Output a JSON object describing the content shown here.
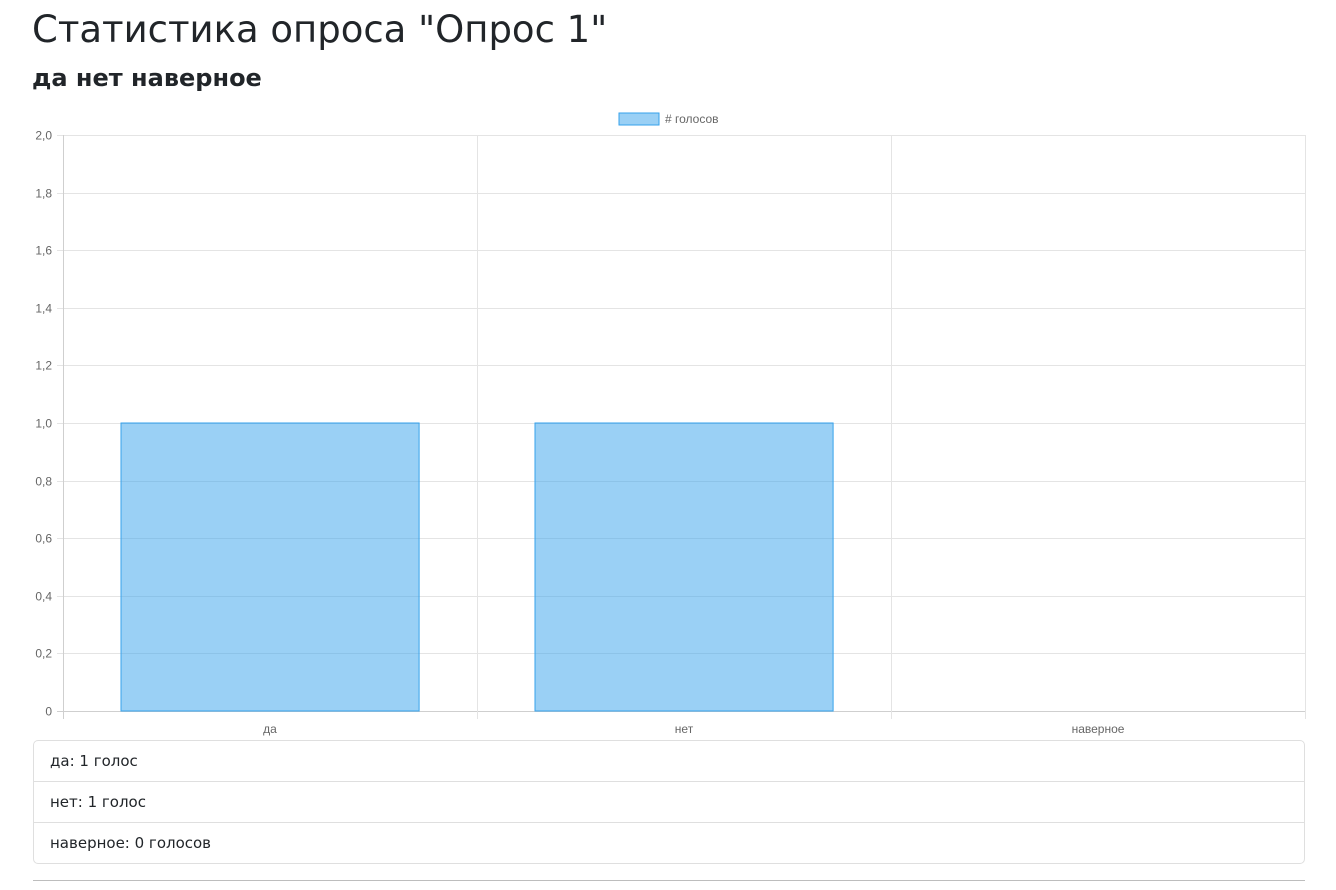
{
  "page": {
    "title": "Статистика опроса \"Опрос 1\"",
    "question": "да нет наверное"
  },
  "chart_data": {
    "type": "bar",
    "categories": [
      "да",
      "нет",
      "наверное"
    ],
    "series": [
      {
        "name": "# голосов",
        "values": [
          1,
          1,
          0
        ]
      }
    ],
    "ylim": [
      0,
      2
    ],
    "yticks": [
      "0",
      "0,2",
      "0,4",
      "0,6",
      "0,8",
      "1,0",
      "1,2",
      "1,4",
      "1,6",
      "1,8",
      "2,0"
    ],
    "grid": true,
    "legend": "top-center",
    "colors": {
      "bar_fill": "rgba(54,162,235,0.5)",
      "bar_stroke": "#36a2eb",
      "grid": "#e4e4e4",
      "axis": "#cfcfcf"
    }
  },
  "results": [
    {
      "text": "да: 1 голос"
    },
    {
      "text": "нет: 1 голос"
    },
    {
      "text": "наверное: 0 голосов"
    }
  ]
}
